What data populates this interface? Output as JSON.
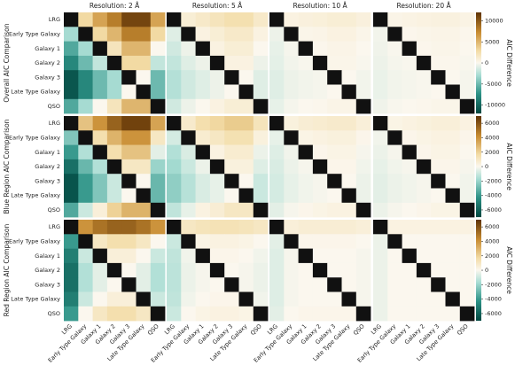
{
  "chart_data": {
    "type": "heatmap",
    "categories": [
      "LRG",
      "Early Type Galaxy",
      "Galaxy 1",
      "Galaxy 2",
      "Galaxy 3",
      "Late Type Galaxy",
      "QSO"
    ],
    "columns": [
      "Resolution: 2 Å",
      "Resolution: 5 Å",
      "Resolution: 10 Å",
      "Resolution: 20 Å"
    ],
    "rows": [
      {
        "label": "Overall AIC Comparison",
        "colorbar": {
          "label": "AIC Difference",
          "lim": [
            -12000,
            12000
          ],
          "ticks": [
            -10000,
            -5000,
            0,
            5000,
            10000
          ]
        },
        "panels": [
          [
            [
              null,
              3000,
              6000,
              8000,
              11000,
              11000,
              6000
            ],
            [
              -3000,
              null,
              3000,
              5000,
              8000,
              8000,
              3000
            ],
            [
              -6000,
              -3000,
              null,
              2000,
              5000,
              5000,
              0
            ],
            [
              -8000,
              -5000,
              -2000,
              null,
              3000,
              3000,
              -2000
            ],
            [
              -11000,
              -8000,
              -5000,
              -3000,
              null,
              0,
              -5000
            ],
            [
              -11000,
              -8000,
              -5000,
              -3000,
              0,
              null,
              -5000
            ],
            [
              -6000,
              -3000,
              0,
              2000,
              5000,
              5000,
              null
            ]
          ],
          [
            [
              null,
              1000,
              1500,
              2000,
              2500,
              2500,
              1500
            ],
            [
              -1000,
              null,
              500,
              1000,
              1500,
              1500,
              500
            ],
            [
              -1500,
              -500,
              null,
              500,
              1000,
              1000,
              0
            ],
            [
              -2000,
              -1000,
              -500,
              null,
              500,
              500,
              -500
            ],
            [
              -2500,
              -1500,
              -1000,
              -500,
              null,
              0,
              -1000
            ],
            [
              -2500,
              -1500,
              -1000,
              -500,
              0,
              null,
              -1000
            ],
            [
              -1500,
              -500,
              0,
              500,
              1000,
              1000,
              null
            ]
          ],
          [
            [
              null,
              500,
              700,
              800,
              1000,
              1000,
              700
            ],
            [
              -500,
              null,
              200,
              300,
              500,
              500,
              200
            ],
            [
              -700,
              -200,
              null,
              100,
              300,
              300,
              0
            ],
            [
              -800,
              -300,
              -100,
              null,
              200,
              200,
              -100
            ],
            [
              -1000,
              -500,
              -300,
              -200,
              null,
              0,
              -300
            ],
            [
              -1000,
              -500,
              -300,
              -200,
              0,
              null,
              -300
            ],
            [
              -700,
              -200,
              0,
              100,
              300,
              300,
              null
            ]
          ],
          [
            [
              null,
              300,
              400,
              500,
              600,
              600,
              400
            ],
            [
              -300,
              null,
              100,
              200,
              300,
              300,
              100
            ],
            [
              -400,
              -100,
              null,
              100,
              200,
              200,
              0
            ],
            [
              -500,
              -200,
              -100,
              null,
              100,
              100,
              -100
            ],
            [
              -600,
              -300,
              -200,
              -100,
              null,
              0,
              -200
            ],
            [
              -600,
              -300,
              -200,
              -100,
              0,
              null,
              -200
            ],
            [
              -400,
              -100,
              0,
              100,
              200,
              200,
              null
            ]
          ]
        ]
      },
      {
        "label": "Blue Region AIC Comparison",
        "colorbar": {
          "label": "AIC Difference",
          "lim": [
            -7000,
            7000
          ],
          "ticks": [
            -6000,
            -4000,
            -2000,
            0,
            2000,
            4000,
            6000
          ]
        },
        "panels": [
          [
            [
              null,
              2500,
              4000,
              5500,
              6500,
              6500,
              3500
            ],
            [
              -2500,
              null,
              1500,
              3000,
              4000,
              4000,
              1000
            ],
            [
              -4000,
              -1500,
              null,
              1500,
              2500,
              2500,
              -500
            ],
            [
              -5500,
              -3000,
              -1500,
              null,
              1000,
              1000,
              -2000
            ],
            [
              -6500,
              -4000,
              -2500,
              -1000,
              null,
              0,
              -3000
            ],
            [
              -6500,
              -4000,
              -2500,
              -1000,
              0,
              null,
              -3000
            ],
            [
              -3500,
              -1000,
              500,
              2000,
              3000,
              3000,
              null
            ]
          ],
          [
            [
              null,
              800,
              1500,
              1800,
              2200,
              2200,
              1200
            ],
            [
              -800,
              null,
              700,
              1000,
              1400,
              1400,
              400
            ],
            [
              -1500,
              -700,
              null,
              300,
              700,
              700,
              -300
            ],
            [
              -1800,
              -1000,
              -300,
              null,
              400,
              400,
              -600
            ],
            [
              -2200,
              -1400,
              -700,
              -400,
              null,
              0,
              -1000
            ],
            [
              -2200,
              -1400,
              -700,
              -400,
              0,
              null,
              -1000
            ],
            [
              -1200,
              -400,
              300,
              600,
              1000,
              1000,
              null
            ]
          ],
          [
            [
              null,
              400,
              600,
              700,
              800,
              800,
              500
            ],
            [
              -400,
              null,
              200,
              300,
              400,
              400,
              100
            ],
            [
              -600,
              -200,
              null,
              100,
              200,
              200,
              -100
            ],
            [
              -700,
              -300,
              -100,
              null,
              100,
              100,
              -200
            ],
            [
              -800,
              -400,
              -200,
              -100,
              null,
              0,
              -300
            ],
            [
              -800,
              -400,
              -200,
              -100,
              0,
              null,
              -300
            ],
            [
              -500,
              -100,
              100,
              200,
              300,
              300,
              null
            ]
          ],
          [
            [
              null,
              200,
              300,
              400,
              500,
              500,
              300
            ],
            [
              -200,
              null,
              100,
              200,
              300,
              300,
              100
            ],
            [
              -300,
              -100,
              null,
              100,
              200,
              200,
              0
            ],
            [
              -400,
              -200,
              -100,
              null,
              100,
              100,
              -100
            ],
            [
              -500,
              -300,
              -200,
              -100,
              null,
              0,
              -200
            ],
            [
              -500,
              -300,
              -200,
              -100,
              0,
              null,
              -200
            ],
            [
              -300,
              -100,
              0,
              100,
              200,
              200,
              null
            ]
          ]
        ]
      },
      {
        "label": "Red Region AIC Comparison",
        "colorbar": {
          "label": "AIC Difference",
          "lim": [
            -7000,
            7000
          ],
          "ticks": [
            -6000,
            -4000,
            -2000,
            0,
            2000,
            4000,
            6000
          ]
        },
        "panels": [
          [
            [
              null,
              4000,
              5000,
              5500,
              5500,
              5000,
              4000
            ],
            [
              -4000,
              null,
              1000,
              1500,
              1500,
              1000,
              0
            ],
            [
              -5000,
              -1000,
              null,
              500,
              500,
              0,
              -1000
            ],
            [
              -5500,
              -1500,
              -500,
              null,
              0,
              -500,
              -1500
            ],
            [
              -5500,
              -1500,
              -500,
              0,
              null,
              -500,
              -1500
            ],
            [
              -5000,
              -1000,
              0,
              500,
              500,
              null,
              -1000
            ],
            [
              -4000,
              0,
              1000,
              1500,
              1500,
              1000,
              null
            ]
          ],
          [
            [
              null,
              1000,
              1200,
              1300,
              1300,
              1200,
              1000
            ],
            [
              -1000,
              null,
              200,
              300,
              300,
              200,
              0
            ],
            [
              -1200,
              -200,
              null,
              100,
              100,
              0,
              -200
            ],
            [
              -1300,
              -300,
              -100,
              null,
              0,
              -100,
              -300
            ],
            [
              -1300,
              -300,
              -100,
              0,
              null,
              -100,
              -300
            ],
            [
              -1200,
              -200,
              0,
              100,
              100,
              null,
              -200
            ],
            [
              -1000,
              0,
              200,
              300,
              300,
              200,
              null
            ]
          ],
          [
            [
              null,
              500,
              600,
              600,
              600,
              600,
              500
            ],
            [
              -500,
              null,
              100,
              100,
              100,
              100,
              0
            ],
            [
              -600,
              -100,
              null,
              0,
              0,
              0,
              -100
            ],
            [
              -600,
              -100,
              0,
              null,
              0,
              0,
              -100
            ],
            [
              -600,
              -100,
              0,
              0,
              null,
              0,
              -100
            ],
            [
              -600,
              -100,
              0,
              0,
              0,
              null,
              -100
            ],
            [
              -500,
              0,
              100,
              100,
              100,
              100,
              null
            ]
          ],
          [
            [
              null,
              300,
              300,
              300,
              300,
              300,
              300
            ],
            [
              -300,
              null,
              0,
              0,
              0,
              0,
              0
            ],
            [
              -300,
              0,
              null,
              0,
              0,
              0,
              0
            ],
            [
              -300,
              0,
              0,
              null,
              0,
              0,
              0
            ],
            [
              -300,
              0,
              0,
              0,
              null,
              0,
              0
            ],
            [
              -300,
              0,
              0,
              0,
              0,
              null,
              0
            ],
            [
              -300,
              0,
              0,
              0,
              0,
              0,
              null
            ]
          ]
        ]
      }
    ]
  }
}
